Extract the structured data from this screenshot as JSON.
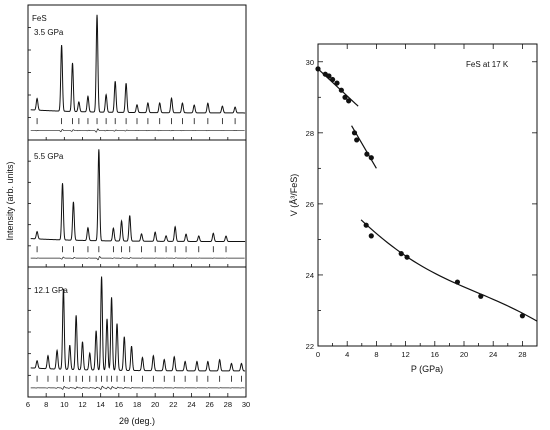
{
  "chart_data": [
    {
      "type": "line",
      "xlabel": "2θ (deg.)",
      "ylabel": "Intensity (arb. units)",
      "xlim": [
        6,
        30
      ],
      "xticks": [
        6,
        8,
        10,
        12,
        14,
        16,
        18,
        20,
        22,
        24,
        26,
        28,
        30
      ],
      "panels": [
        {
          "labels": [
            "FeS",
            "3.5 GPa"
          ],
          "peaks": [
            {
              "x": 7.0,
              "h": 0.12
            },
            {
              "x": 9.7,
              "h": 0.68
            },
            {
              "x": 10.9,
              "h": 0.5
            },
            {
              "x": 11.6,
              "h": 0.1
            },
            {
              "x": 12.6,
              "h": 0.16
            },
            {
              "x": 13.6,
              "h": 1.0
            },
            {
              "x": 14.6,
              "h": 0.18
            },
            {
              "x": 15.6,
              "h": 0.32
            },
            {
              "x": 16.8,
              "h": 0.3
            },
            {
              "x": 18.0,
              "h": 0.08
            },
            {
              "x": 19.2,
              "h": 0.1
            },
            {
              "x": 20.5,
              "h": 0.1
            },
            {
              "x": 21.8,
              "h": 0.15
            },
            {
              "x": 23.0,
              "h": 0.1
            },
            {
              "x": 24.3,
              "h": 0.08
            },
            {
              "x": 25.8,
              "h": 0.1
            },
            {
              "x": 27.4,
              "h": 0.07
            },
            {
              "x": 28.8,
              "h": 0.06
            }
          ]
        },
        {
          "labels": [
            "5.5 GPa"
          ],
          "peaks": [
            {
              "x": 7.0,
              "h": 0.08
            },
            {
              "x": 9.8,
              "h": 0.62
            },
            {
              "x": 11.0,
              "h": 0.42
            },
            {
              "x": 12.6,
              "h": 0.14
            },
            {
              "x": 13.8,
              "h": 1.0
            },
            {
              "x": 15.4,
              "h": 0.14
            },
            {
              "x": 16.3,
              "h": 0.22
            },
            {
              "x": 17.2,
              "h": 0.28
            },
            {
              "x": 18.5,
              "h": 0.08
            },
            {
              "x": 20.0,
              "h": 0.1
            },
            {
              "x": 21.2,
              "h": 0.06
            },
            {
              "x": 22.2,
              "h": 0.16
            },
            {
              "x": 23.4,
              "h": 0.08
            },
            {
              "x": 24.8,
              "h": 0.06
            },
            {
              "x": 26.4,
              "h": 0.09
            },
            {
              "x": 27.8,
              "h": 0.06
            }
          ]
        },
        {
          "labels": [
            "12.1 GPa"
          ],
          "peaks": [
            {
              "x": 7.0,
              "h": 0.08
            },
            {
              "x": 8.2,
              "h": 0.14
            },
            {
              "x": 9.2,
              "h": 0.2
            },
            {
              "x": 9.9,
              "h": 0.86
            },
            {
              "x": 10.6,
              "h": 0.26
            },
            {
              "x": 11.3,
              "h": 0.58
            },
            {
              "x": 12.0,
              "h": 0.3
            },
            {
              "x": 12.8,
              "h": 0.18
            },
            {
              "x": 13.5,
              "h": 0.42
            },
            {
              "x": 14.1,
              "h": 1.0
            },
            {
              "x": 14.7,
              "h": 0.55
            },
            {
              "x": 15.2,
              "h": 0.78
            },
            {
              "x": 15.8,
              "h": 0.5
            },
            {
              "x": 16.6,
              "h": 0.36
            },
            {
              "x": 17.4,
              "h": 0.26
            },
            {
              "x": 18.6,
              "h": 0.14
            },
            {
              "x": 19.8,
              "h": 0.16
            },
            {
              "x": 21.0,
              "h": 0.12
            },
            {
              "x": 22.1,
              "h": 0.15
            },
            {
              "x": 23.3,
              "h": 0.1
            },
            {
              "x": 24.6,
              "h": 0.1
            },
            {
              "x": 25.8,
              "h": 0.1
            },
            {
              "x": 27.1,
              "h": 0.12
            },
            {
              "x": 28.4,
              "h": 0.08
            },
            {
              "x": 29.5,
              "h": 0.08
            }
          ]
        }
      ]
    },
    {
      "type": "scatter",
      "annotation": "FeS at 17 K",
      "xlabel": "P (GPa)",
      "ylabel": "V (Å³/FeS)",
      "xlim": [
        0,
        30
      ],
      "ylim": [
        22,
        30.5
      ],
      "xticks": [
        0,
        4,
        8,
        12,
        16,
        20,
        24,
        28
      ],
      "yticks": [
        22,
        24,
        26,
        28,
        30
      ],
      "series": [
        {
          "x": [
            0.0,
            1.0,
            1.5,
            2.0,
            2.6,
            3.2,
            3.7,
            4.2
          ],
          "y": [
            29.8,
            29.65,
            29.6,
            29.5,
            29.4,
            29.2,
            29.0,
            28.9
          ]
        },
        {
          "x": [
            5.0,
            5.3,
            6.7,
            7.3
          ],
          "y": [
            28.0,
            27.8,
            27.4,
            27.3
          ]
        },
        {
          "x": [
            6.6,
            7.3,
            11.4,
            12.2,
            19.1,
            22.3,
            28.0
          ],
          "y": [
            25.4,
            25.1,
            24.6,
            24.5,
            23.8,
            23.4,
            22.85
          ]
        }
      ],
      "fits": [
        {
          "x": [
            0,
            5.5
          ],
          "y": [
            29.8,
            28.75
          ]
        },
        {
          "x": [
            4.6,
            8.0
          ],
          "y": [
            28.2,
            27.0
          ]
        },
        {
          "x": [
            5.9,
            30.0
          ],
          "y": [
            25.55,
            22.7
          ]
        }
      ]
    }
  ]
}
